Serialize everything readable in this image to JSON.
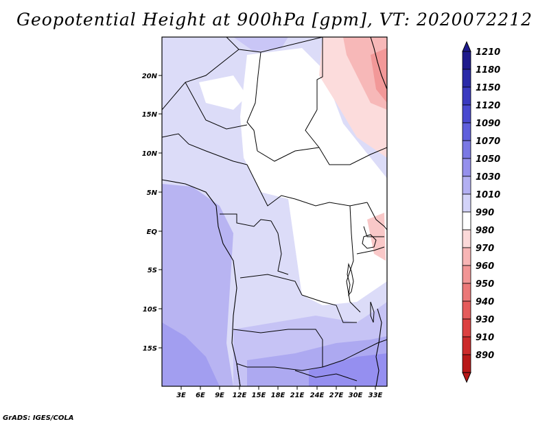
{
  "title": "Geopotential Height at 900hPa [gpm], VT: 2020072212",
  "credit": "GrADS: IGES/COLA",
  "map": {
    "lat_ticks": [
      "20N",
      "15N",
      "10N",
      "5N",
      "EQ",
      "5S",
      "10S",
      "15S"
    ],
    "lon_ticks": [
      "3E",
      "6E",
      "9E",
      "12E",
      "15E",
      "18E",
      "21E",
      "24E",
      "27E",
      "30E",
      "33E"
    ]
  },
  "colorbar": {
    "labels": [
      "1210",
      "1180",
      "1150",
      "1120",
      "1090",
      "1070",
      "1050",
      "1030",
      "1010",
      "990",
      "980",
      "970",
      "960",
      "950",
      "940",
      "930",
      "910",
      "890"
    ],
    "colors": [
      "#1e1a8c",
      "#2a2aa8",
      "#3a3ac0",
      "#4a4ad0",
      "#5f5fdc",
      "#7a78e4",
      "#9590ec",
      "#b3b0f2",
      "#d3d3f8",
      "#ffffff",
      "#fcd9d9",
      "#f7b5b5",
      "#f19595",
      "#eb7878",
      "#e45b5b",
      "#dc4040",
      "#cc2a2a",
      "#b81818"
    ]
  }
}
